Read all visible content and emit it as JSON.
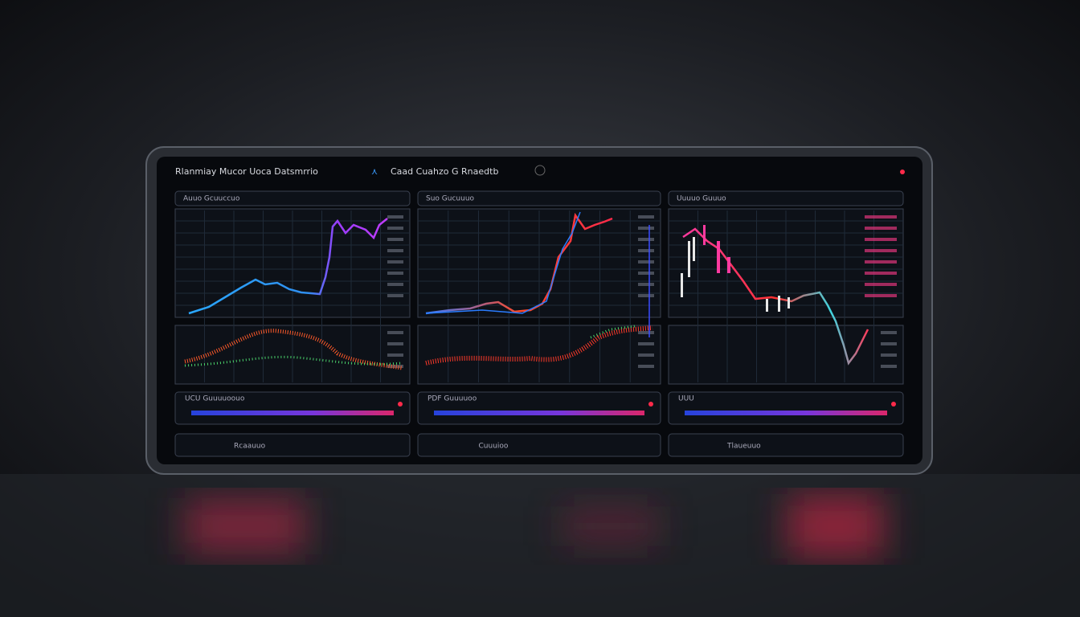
{
  "header": {
    "title": "Rlanmiay Mucor Uoca Datsmrrio",
    "subtitle": "Caad Cuahzo G Rnaedtb"
  },
  "panels": [
    {
      "tab": "Auuo Gcuuccuo",
      "strip": "UCU Guuuuoouo",
      "footer": "Rcaauuo"
    },
    {
      "tab": "Suo Gucuuuo",
      "strip": "PDF Guuuuoo",
      "footer": "Cuuuioo"
    },
    {
      "tab": "Uuuuo Guuuo",
      "strip": "UUU",
      "footer": "Tlaueuuo"
    }
  ]
}
